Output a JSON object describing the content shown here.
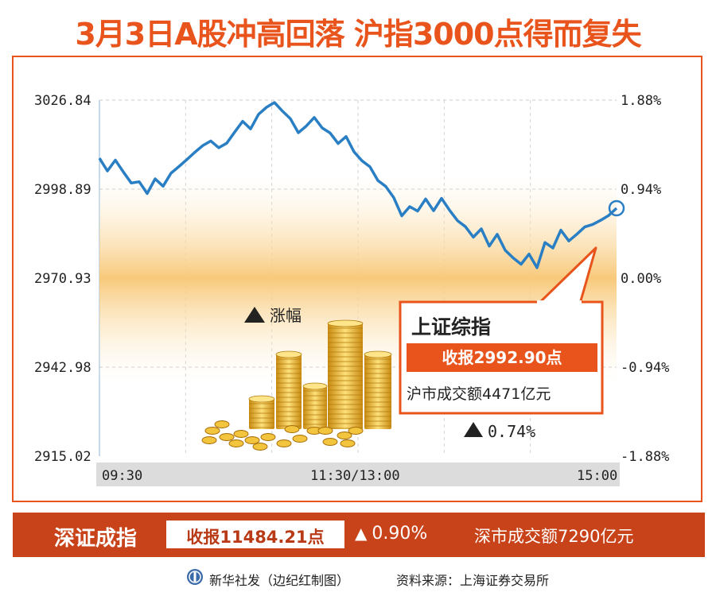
{
  "title": "3月3日A股冲高回落  沪指3000点得而复失",
  "colors": {
    "accent": "#e8541c",
    "line": "#2a7fc4",
    "zeroline": "#a08a55",
    "bar": "#c8431a",
    "gold": "#e9b32a"
  },
  "chart_data": {
    "type": "line",
    "title": "",
    "xlabel": "",
    "ylabel": "",
    "x_ticks": [
      "09:30",
      "11:30/13:00",
      "15:00"
    ],
    "y_ticks_left": [
      "3026.84",
      "2998.89",
      "2970.93",
      "2942.98",
      "2915.02"
    ],
    "y_ticks_right": [
      "1.88%",
      "0.94%",
      "0.00%",
      "-0.94%",
      "-1.88%"
    ],
    "ylim": [
      2915.02,
      3026.84
    ],
    "prev_close": 2970.93,
    "grid": true,
    "series": [
      {
        "values": [
          3008.6,
          3004.6,
          3008.0,
          3004.3,
          3000.8,
          3001.2,
          2997.5,
          3002.1,
          2999.8,
          3003.9,
          3006.0,
          3008.2,
          3010.5,
          3012.6,
          3014.0,
          3011.9,
          3013.3,
          3016.8,
          3020.2,
          3017.8,
          3022.4,
          3024.6,
          3026.1,
          3023.4,
          3021.0,
          3016.6,
          3018.7,
          3021.4,
          3018.1,
          3016.5,
          3013.2,
          3015.4,
          3010.6,
          3007.8,
          3005.9,
          3001.6,
          2999.7,
          2996.2,
          2990.5,
          2993.4,
          2992.0,
          2995.8,
          2992.1,
          2996.0,
          2992.3,
          2989.0,
          2987.1,
          2983.8,
          2986.4,
          2981.0,
          2984.7,
          2979.7,
          2977.3,
          2975.3,
          2978.5,
          2974.2,
          2982.1,
          2980.4,
          2986.0,
          2982.6,
          2984.7,
          2987.0,
          2987.8,
          2989.1,
          2990.6,
          2992.9
        ]
      }
    ],
    "sh_index": {
      "name": "上证综指",
      "close_label": "收报2992.90点",
      "change": "0.74%",
      "volume_label": "沪市成交额4471亿元"
    },
    "annotation_up_label": "涨幅"
  },
  "sz_index": {
    "name": "深证成指",
    "close_label": "收报11484.21点",
    "change": "0.90%",
    "volume_label": "深市成交额7290亿元"
  },
  "footer": {
    "credit": "新华社发（边纪红制图）",
    "source": "资料来源：上海证券交易所"
  }
}
